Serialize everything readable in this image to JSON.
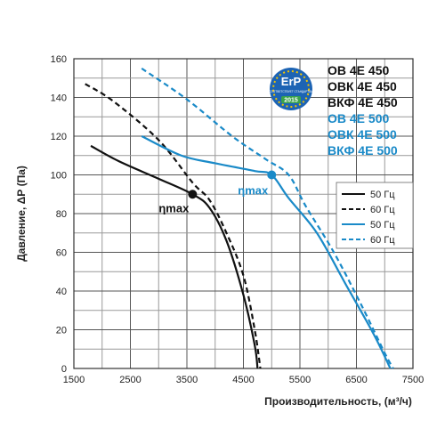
{
  "chart_data": {
    "type": "line",
    "xlabel": "Производительность, (м³/ч)",
    "ylabel": "Давление, ΔР (Па)",
    "xlim": [
      1500,
      7500
    ],
    "ylim": [
      0,
      160
    ],
    "x_ticks": [
      "1500",
      "2500",
      "3500",
      "4500",
      "5500",
      "6500",
      "7500"
    ],
    "y_ticks": [
      "0",
      "20",
      "40",
      "60",
      "80",
      "100",
      "120",
      "140",
      "160"
    ],
    "grid": true,
    "models": [
      {
        "label": "ОВ 4Е 450",
        "color": "#111111"
      },
      {
        "label": "ОВК 4Е 450",
        "color": "#111111"
      },
      {
        "label": "ВКФ 4Е 450",
        "color": "#111111"
      },
      {
        "label": "ОВ 4Е 500",
        "color": "#1a8ac8"
      },
      {
        "label": "ОВК 4Е 500",
        "color": "#1a8ac8"
      },
      {
        "label": "ВКФ 4Е 500",
        "color": "#1a8ac8"
      }
    ],
    "legend_position": "right",
    "series": [
      {
        "name": "50 Гц",
        "color": "#111111",
        "dash": false,
        "points": [
          [
            1800,
            115
          ],
          [
            2300,
            107
          ],
          [
            3000,
            98
          ],
          [
            3600,
            90
          ],
          [
            3900,
            83
          ],
          [
            4200,
            66
          ],
          [
            4500,
            38
          ],
          [
            4700,
            12
          ],
          [
            4750,
            0
          ]
        ]
      },
      {
        "name": "60 Гц",
        "color": "#111111",
        "dash": true,
        "points": [
          [
            1700,
            147
          ],
          [
            2200,
            138
          ],
          [
            3000,
            118
          ],
          [
            3600,
            96
          ],
          [
            3900,
            87
          ],
          [
            4200,
            70
          ],
          [
            4500,
            48
          ],
          [
            4700,
            20
          ],
          [
            4800,
            0
          ]
        ]
      },
      {
        "name": "50 Гц",
        "color": "#1a8ac8",
        "dash": false,
        "points": [
          [
            2700,
            120
          ],
          [
            3400,
            110
          ],
          [
            4000,
            106
          ],
          [
            4700,
            102
          ],
          [
            5000,
            100
          ],
          [
            5300,
            88
          ],
          [
            5800,
            70
          ],
          [
            6300,
            44
          ],
          [
            6800,
            18
          ],
          [
            7100,
            0
          ]
        ]
      },
      {
        "name": "60 Гц",
        "color": "#1a8ac8",
        "dash": true,
        "points": [
          [
            2700,
            155
          ],
          [
            3500,
            139
          ],
          [
            4300,
            120
          ],
          [
            4900,
            108
          ],
          [
            5300,
            100
          ],
          [
            5600,
            84
          ],
          [
            6100,
            60
          ],
          [
            6600,
            32
          ],
          [
            7000,
            8
          ],
          [
            7150,
            0
          ]
        ]
      }
    ],
    "annotations": [
      {
        "text": "ηmax",
        "x": 3600,
        "y": 90,
        "color": "#111111"
      },
      {
        "text": "ηmax",
        "x": 5000,
        "y": 100,
        "color": "#1a8ac8"
      }
    ],
    "badge": {
      "logo": "ErP",
      "caption": "СООТВЕТСТВУЕТ СТАНДАРТАМ",
      "year": "2015"
    }
  }
}
